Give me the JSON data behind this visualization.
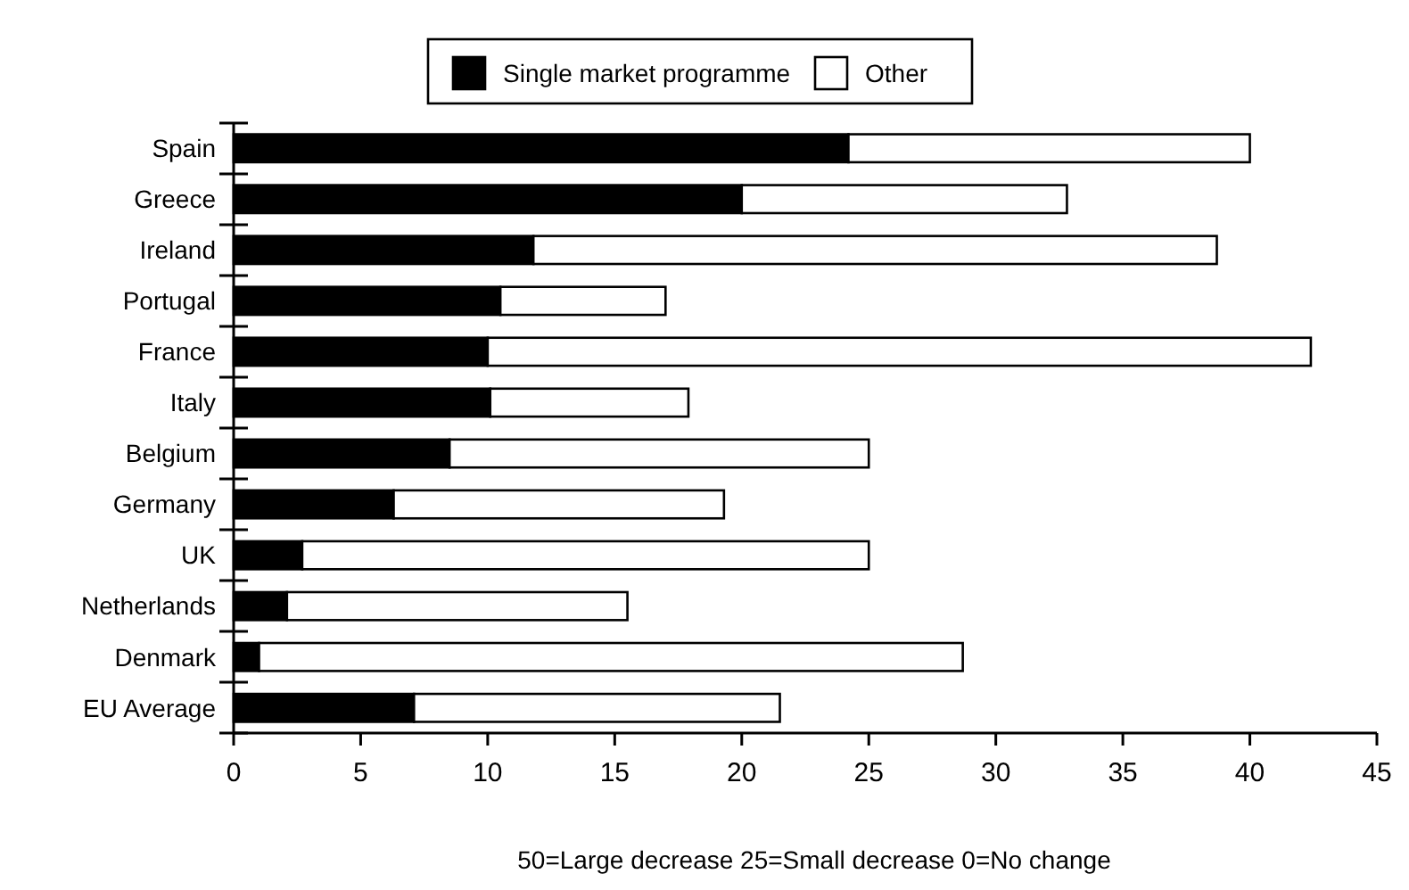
{
  "chart_data": {
    "type": "bar",
    "orientation": "horizontal",
    "stacked": true,
    "categories": [
      "Spain",
      "Greece",
      "Ireland",
      "Portugal",
      "France",
      "Italy",
      "Belgium",
      "Germany",
      "UK",
      "Netherlands",
      "Denmark",
      "EU Average"
    ],
    "series": [
      {
        "name": "Single market programme",
        "color": "#000000",
        "values": [
          24.2,
          20,
          11.8,
          10.5,
          10,
          10.1,
          8.5,
          6.3,
          2.7,
          2.1,
          1,
          7.1
        ]
      },
      {
        "name": "Other",
        "color": "#ffffff",
        "values": [
          15.8,
          12.8,
          26.9,
          6.5,
          32.4,
          7.8,
          16.5,
          13,
          22.3,
          13.4,
          27.7,
          14.4
        ]
      }
    ],
    "xlim": [
      0,
      45
    ],
    "xticks": [
      0,
      5,
      10,
      15,
      20,
      25,
      30,
      35,
      40,
      45
    ],
    "xlabel": "50=Large decrease   25=Small decrease   0=No change",
    "legend": "top",
    "grid": false
  }
}
